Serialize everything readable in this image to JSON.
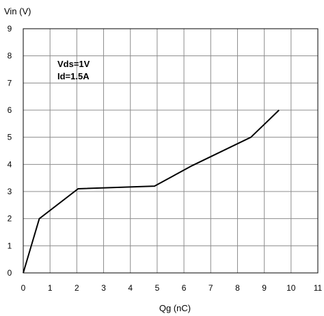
{
  "chart_data": {
    "type": "line",
    "title": "",
    "xlabel": "Qg (nC)",
    "ylabel": "Vin (V)",
    "xlim": [
      0,
      11
    ],
    "ylim": [
      0,
      9
    ],
    "xticks": [
      0,
      1,
      2,
      3,
      4,
      5,
      6,
      7,
      8,
      9,
      10,
      11
    ],
    "yticks": [
      0,
      1,
      2,
      3,
      4,
      5,
      6,
      7,
      8,
      9
    ],
    "grid": true,
    "annotations": [
      "Vds=1V",
      "Id=1.5A"
    ],
    "series": [
      {
        "x": [
          0,
          0.6,
          2.05,
          4.9,
          6.3,
          8.5,
          9.55
        ],
        "y": [
          0,
          2.0,
          3.1,
          3.2,
          3.95,
          5.0,
          6.0
        ]
      }
    ],
    "colors": {
      "line": "#000000",
      "grid": "#8c8c8c",
      "frame": "#000000",
      "background": "#ffffff"
    }
  }
}
